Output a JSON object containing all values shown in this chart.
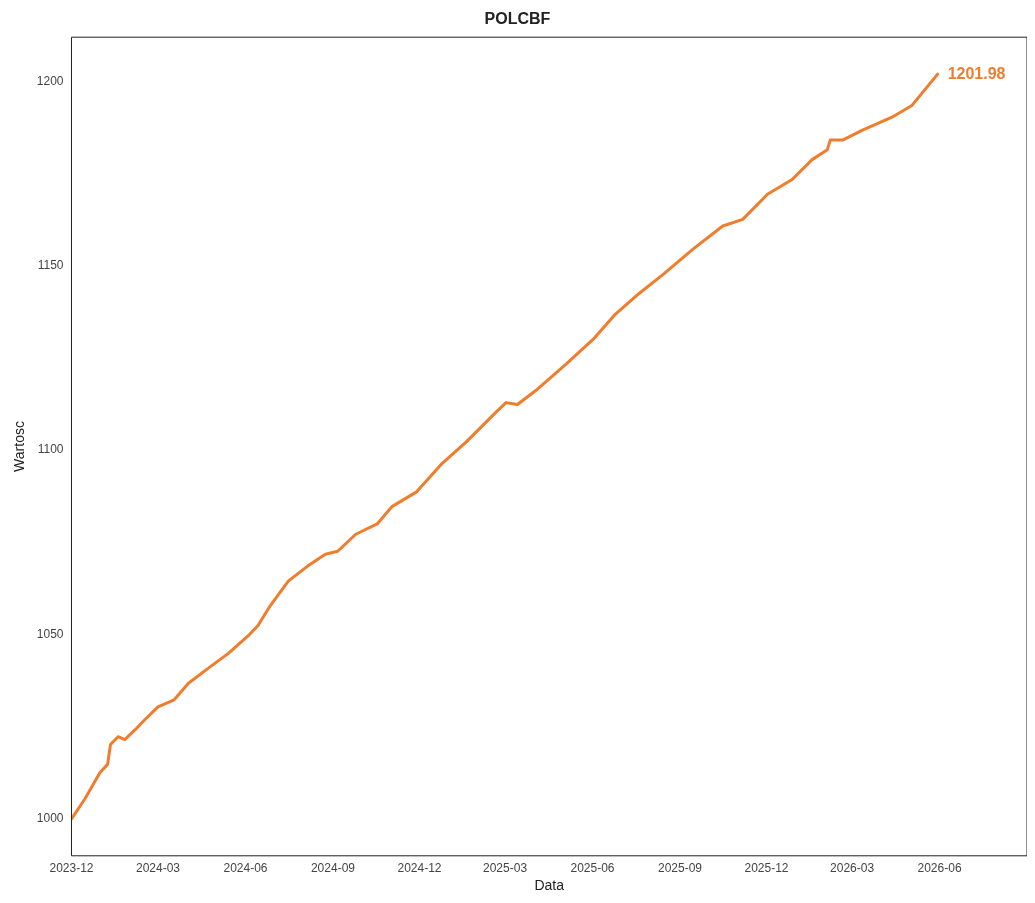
{
  "chart_data": {
    "type": "line",
    "title": "POLCBF",
    "xlabel": "Data",
    "ylabel": "Wartosc",
    "x": [
      "2023-12-01",
      "2023-12-15",
      "2023-12-31",
      "2024-01-08",
      "2024-01-11",
      "2024-01-19",
      "2024-01-26",
      "2024-02-06",
      "2024-02-16",
      "2024-03-01",
      "2024-03-18",
      "2024-04-02",
      "2024-04-23",
      "2024-05-14",
      "2024-06-04",
      "2024-06-14",
      "2024-06-27",
      "2024-07-16",
      "2024-08-05",
      "2024-08-24",
      "2024-09-06",
      "2024-09-25",
      "2024-10-18",
      "2024-11-02",
      "2024-11-28",
      "2024-12-24",
      "2025-01-19",
      "2025-02-19",
      "2025-03-02",
      "2025-03-14",
      "2025-04-02",
      "2025-05-03",
      "2025-06-03",
      "2025-06-24",
      "2025-07-20",
      "2025-08-15",
      "2025-09-15",
      "2025-10-16",
      "2025-11-06",
      "2025-12-02",
      "2025-12-28",
      "2026-01-18",
      "2026-02-03",
      "2026-02-06",
      "2026-02-19",
      "2026-03-12",
      "2026-04-12",
      "2026-05-03",
      "2026-05-30"
    ],
    "series": [
      {
        "color": "#f07c2c",
        "values": [
          1000,
          1005.4,
          1012.6,
          1014.8,
          1020.2,
          1022.3,
          1021.5,
          1024.2,
          1026.9,
          1030.4,
          1032.3,
          1036.8,
          1040.9,
          1044.9,
          1049.7,
          1052.4,
          1057.8,
          1064.5,
          1068.5,
          1071.8,
          1072.6,
          1077.2,
          1080.1,
          1084.7,
          1088.7,
          1096.2,
          1102.2,
          1110.2,
          1112.9,
          1112.4,
          1116.1,
          1123.1,
          1130.4,
          1136.6,
          1142.5,
          1147.8,
          1154.6,
          1160.8,
          1162.6,
          1169.4,
          1173.4,
          1178.8,
          1181.5,
          1184.1,
          1184.1,
          1186.8,
          1190.3,
          1193.5,
          1201.98
        ]
      }
    ],
    "xlim": [
      "2023-12-01",
      "2026-09-01"
    ],
    "xticks": [
      "2023-12",
      "2024-03",
      "2024-06",
      "2024-09",
      "2024-12",
      "2025-03",
      "2025-06",
      "2025-09",
      "2025-12",
      "2026-03",
      "2026-06"
    ],
    "ylim": [
      990,
      1212
    ],
    "yticks": [
      1000,
      1050,
      1100,
      1150,
      1200
    ],
    "annotations": [
      {
        "text": "1201.98",
        "x": "2026-05-30",
        "y": 1201.98
      }
    ],
    "grid": false,
    "legend": false,
    "marker": "none",
    "line_style": "solid"
  }
}
